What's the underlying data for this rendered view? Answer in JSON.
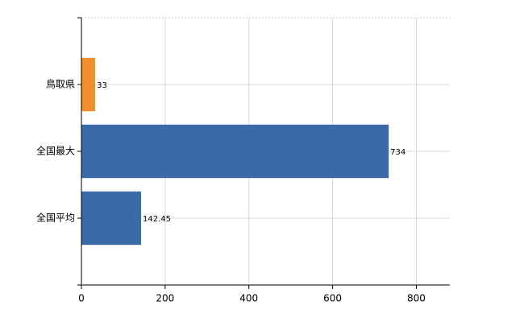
{
  "chart_data": {
    "type": "barh",
    "categories": [
      "鳥取県",
      "全国最大",
      "全国平均"
    ],
    "values": [
      33,
      734,
      142.45
    ],
    "colors": [
      "#f28e2b",
      "#3a6aa8",
      "#3a6aa8"
    ],
    "xlim": [
      0,
      880
    ],
    "xticks": [
      0,
      200,
      400,
      600,
      800
    ],
    "grid": true
  }
}
